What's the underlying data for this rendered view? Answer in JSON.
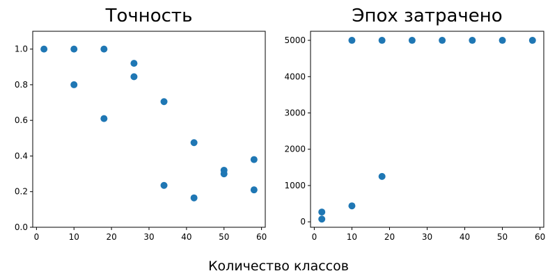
{
  "figure": {
    "xlabel": "Количество классов"
  },
  "chart_data": [
    {
      "type": "scatter",
      "title": "Точность",
      "xlim": [
        -1,
        61
      ],
      "ylim": [
        0,
        1.1
      ],
      "xticks": [
        0,
        10,
        20,
        30,
        40,
        50,
        60
      ],
      "xtick_labels": [
        "0",
        "10",
        "20",
        "30",
        "40",
        "50",
        "60"
      ],
      "yticks": [
        0.0,
        0.2,
        0.4,
        0.6,
        0.8,
        1.0
      ],
      "ytick_labels": [
        "0.0",
        "0.2",
        "0.4",
        "0.6",
        "0.8",
        "1.0"
      ],
      "grid": false,
      "color": "#1f77b4",
      "points": [
        {
          "x": 2,
          "y": 1.0
        },
        {
          "x": 10,
          "y": 1.0
        },
        {
          "x": 10,
          "y": 0.8
        },
        {
          "x": 18,
          "y": 1.0
        },
        {
          "x": 18,
          "y": 0.61
        },
        {
          "x": 26,
          "y": 0.92
        },
        {
          "x": 26,
          "y": 0.845
        },
        {
          "x": 34,
          "y": 0.705
        },
        {
          "x": 34,
          "y": 0.235
        },
        {
          "x": 42,
          "y": 0.475
        },
        {
          "x": 42,
          "y": 0.165
        },
        {
          "x": 50,
          "y": 0.32
        },
        {
          "x": 50,
          "y": 0.3
        },
        {
          "x": 58,
          "y": 0.38
        },
        {
          "x": 58,
          "y": 0.21
        }
      ]
    },
    {
      "type": "scatter",
      "title": "Эпох затрачено",
      "xlim": [
        -1,
        61
      ],
      "ylim": [
        -150,
        5250
      ],
      "xticks": [
        0,
        10,
        20,
        30,
        40,
        50,
        60
      ],
      "xtick_labels": [
        "0",
        "10",
        "20",
        "30",
        "40",
        "50",
        "60"
      ],
      "yticks": [
        0,
        1000,
        2000,
        3000,
        4000,
        5000
      ],
      "ytick_labels": [
        "0",
        "1000",
        "2000",
        "3000",
        "4000",
        "5000"
      ],
      "grid": false,
      "color": "#1f77b4",
      "points": [
        {
          "x": 2,
          "y": 270
        },
        {
          "x": 2,
          "y": 75
        },
        {
          "x": 10,
          "y": 5000
        },
        {
          "x": 10,
          "y": 440
        },
        {
          "x": 18,
          "y": 5000
        },
        {
          "x": 18,
          "y": 1250
        },
        {
          "x": 26,
          "y": 5000
        },
        {
          "x": 34,
          "y": 5000
        },
        {
          "x": 42,
          "y": 5000
        },
        {
          "x": 50,
          "y": 5000
        },
        {
          "x": 58,
          "y": 5000
        }
      ]
    }
  ]
}
